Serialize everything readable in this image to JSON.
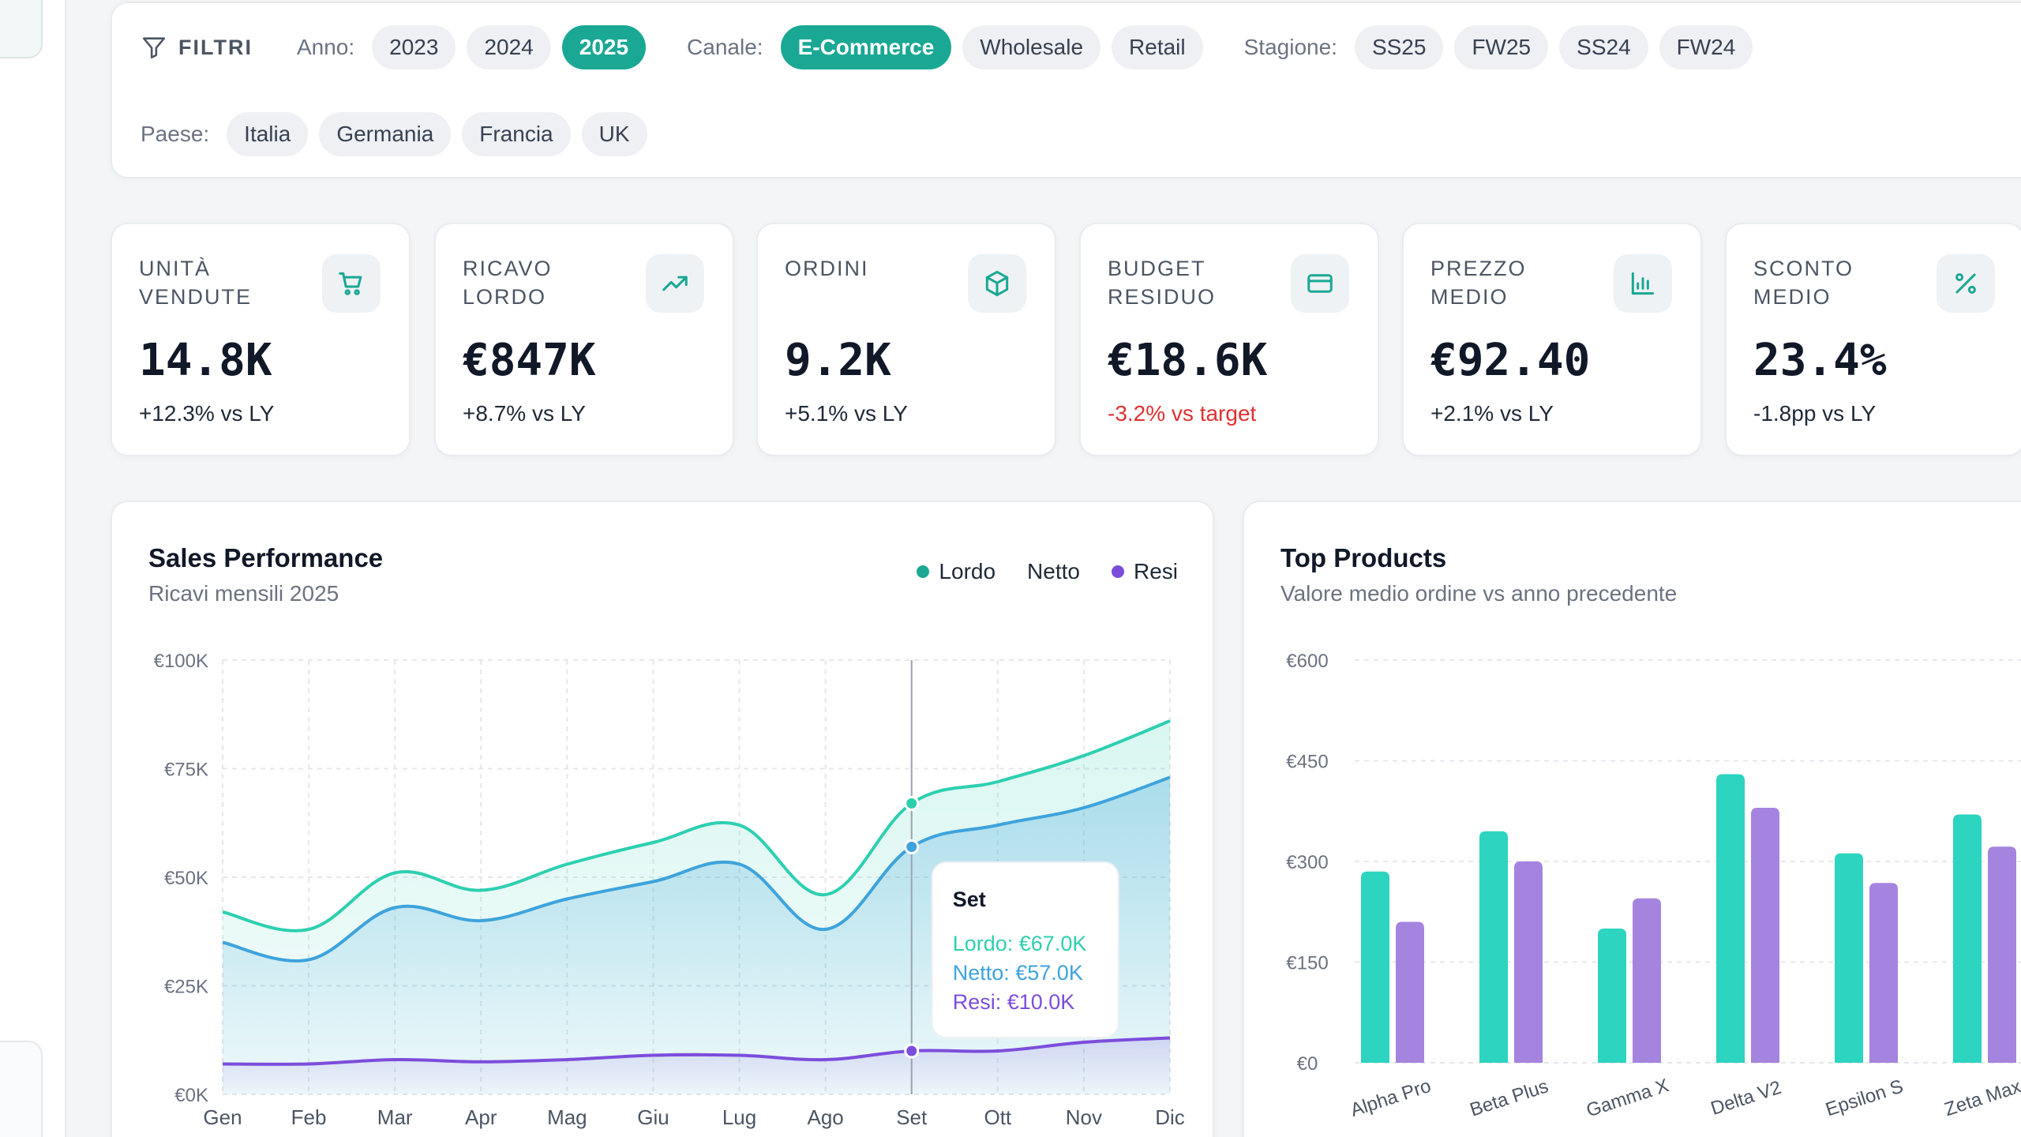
{
  "filters": {
    "title": "FILTRI",
    "year_label": "Anno:",
    "years": [
      {
        "label": "2023",
        "active": false
      },
      {
        "label": "2024",
        "active": false
      },
      {
        "label": "2025",
        "active": true
      }
    ],
    "channel_label": "Canale:",
    "channels": [
      {
        "label": "E-Commerce",
        "active": true
      },
      {
        "label": "Wholesale",
        "active": false
      },
      {
        "label": "Retail",
        "active": false
      }
    ],
    "season_label": "Stagione:",
    "seasons": [
      {
        "label": "SS25",
        "active": false
      },
      {
        "label": "FW25",
        "active": false
      },
      {
        "label": "SS24",
        "active": false
      },
      {
        "label": "FW24",
        "active": false
      }
    ],
    "country_label": "Paese:",
    "countries": [
      {
        "label": "Italia",
        "active": false
      },
      {
        "label": "Germania",
        "active": false
      },
      {
        "label": "Francia",
        "active": false
      },
      {
        "label": "UK",
        "active": false
      }
    ]
  },
  "kpis": [
    {
      "label": "UNITÀ VENDUTE",
      "value": "14.8K",
      "delta": "+12.3% vs LY",
      "icon": "cart-icon",
      "negative": false
    },
    {
      "label": "RICAVO LORDO",
      "value": "€847K",
      "delta": "+8.7% vs LY",
      "icon": "trend-up-icon",
      "negative": false
    },
    {
      "label": "ORDINI",
      "value": "9.2K",
      "delta": "+5.1% vs LY",
      "icon": "package-icon",
      "negative": false
    },
    {
      "label": "BUDGET RESIDUO",
      "value": "€18.6K",
      "delta": "-3.2% vs target",
      "icon": "credit-card-icon",
      "negative": true
    },
    {
      "label": "PREZZO MEDIO",
      "value": "€92.40",
      "delta": "+2.1% vs LY",
      "icon": "bar-chart-icon",
      "negative": false
    },
    {
      "label": "SCONTO MEDIO",
      "value": "23.4%",
      "delta": "-1.8pp vs LY",
      "icon": "percent-icon",
      "negative": false
    }
  ],
  "colors": {
    "accent": "#1aa894",
    "lordo": "#2ecfb1",
    "netto": "#3ea3dc",
    "resi": "#7c4ddb",
    "negative": "#e03131",
    "bar_current": "#2dd4bf",
    "bar_prev": "#a584e0"
  },
  "sales": {
    "title": "Sales Performance",
    "subtitle": "Ricavi mensili 2025",
    "legend": [
      {
        "label": "Lordo",
        "color": "#1aa894",
        "dot": true
      },
      {
        "label": "Netto",
        "color": "#3ea3dc",
        "dot": false
      },
      {
        "label": "Resi",
        "color": "#7c4ddb",
        "dot": true
      }
    ],
    "tooltip": {
      "title": "Set",
      "lines": [
        "Lordo: €67.0K",
        "Netto: €57.0K",
        "Resi: €10.0K"
      ]
    }
  },
  "products": {
    "title": "Top Products",
    "subtitle": "Valore medio ordine vs anno precedente"
  },
  "chart_data": [
    {
      "type": "area",
      "title": "Sales Performance",
      "subtitle": "Ricavi mensili 2025",
      "categories": [
        "Gen",
        "Feb",
        "Mar",
        "Apr",
        "Mag",
        "Giu",
        "Lug",
        "Ago",
        "Set",
        "Ott",
        "Nov",
        "Dic"
      ],
      "y_ticks": [
        "€0K",
        "€25K",
        "€50K",
        "€75K",
        "€100K"
      ],
      "ylim": [
        0,
        100
      ],
      "grid": true,
      "legend_position": "top-right",
      "series": [
        {
          "name": "Lordo",
          "values": [
            42,
            38,
            51,
            47,
            53,
            58,
            62,
            46,
            67,
            72,
            78,
            86
          ]
        },
        {
          "name": "Netto",
          "values": [
            35,
            31,
            43,
            40,
            45,
            49,
            53,
            38,
            57,
            62,
            66,
            73
          ]
        },
        {
          "name": "Resi",
          "values": [
            7,
            7,
            8,
            7.5,
            8,
            9,
            9,
            8,
            10,
            10,
            12,
            13
          ]
        }
      ],
      "highlight_index": 8
    },
    {
      "type": "bar",
      "title": "Top Products",
      "subtitle": "Valore medio ordine vs anno precedente",
      "categories": [
        "Alpha Pro",
        "Beta Plus",
        "Gamma X",
        "Delta V2",
        "Epsilon S",
        "Zeta Max"
      ],
      "y_ticks": [
        "€0",
        "€150",
        "€300",
        "€450",
        "€600"
      ],
      "ylim": [
        0,
        600
      ],
      "grid": true,
      "series": [
        {
          "values": [
            285,
            345,
            200,
            430,
            312,
            370
          ]
        },
        {
          "values": [
            210,
            300,
            245,
            380,
            268,
            322
          ]
        }
      ]
    }
  ]
}
